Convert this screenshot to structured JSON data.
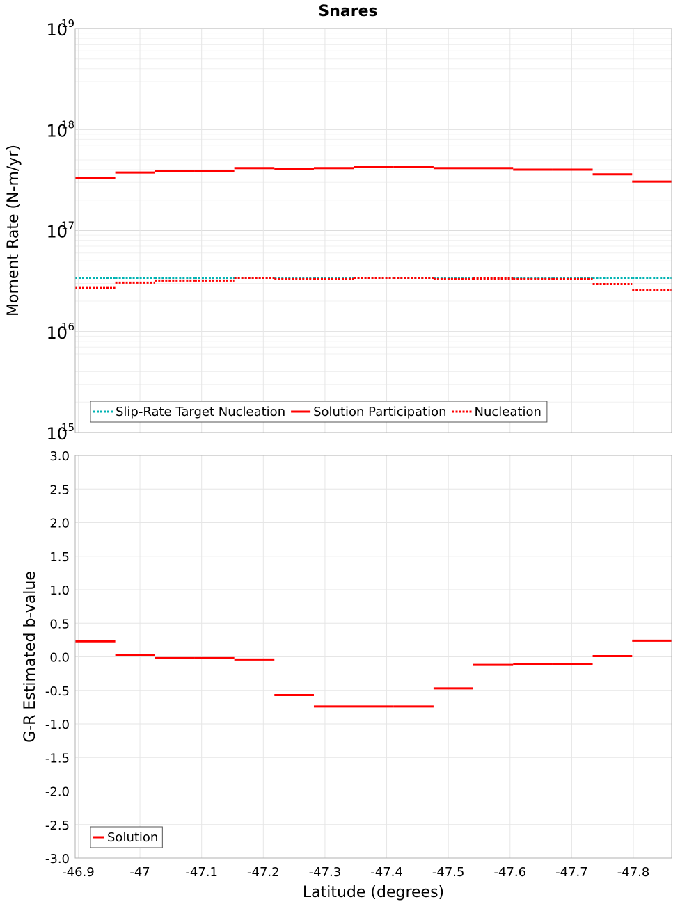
{
  "title": "Snares",
  "chart_data": [
    {
      "type": "line",
      "step": true,
      "title": "Snares",
      "xlabel": "Latitude (degrees)",
      "ylabel": "Moment Rate (N-m/yr)",
      "yscale": "log",
      "ylim": [
        1000000000000000.0,
        1e+19
      ],
      "xlim": [
        -46.895,
        -47.862
      ],
      "grid": true,
      "legend_position": "bottom-left",
      "y_tick_labels": [
        {
          "base": "10",
          "exp": "15"
        },
        {
          "base": "10",
          "exp": "16"
        },
        {
          "base": "10",
          "exp": "17"
        },
        {
          "base": "10",
          "exp": "18"
        },
        {
          "base": "10",
          "exp": "19"
        }
      ],
      "bin_edges": [
        -46.895,
        -46.96,
        -47.024,
        -47.089,
        -47.153,
        -47.218,
        -47.282,
        -47.347,
        -47.411,
        -47.476,
        -47.54,
        -47.605,
        -47.669,
        -47.734,
        -47.798,
        -47.862
      ],
      "series": [
        {
          "name": "Slip-Rate Target Nucleation",
          "color": "#00b3b3",
          "style": "dotted",
          "values": [
            3.4e+16,
            3.4e+16,
            3.4e+16,
            3.4e+16,
            3.4e+16,
            3.4e+16,
            3.4e+16,
            3.4e+16,
            3.4e+16,
            3.4e+16,
            3.4e+16,
            3.4e+16,
            3.4e+16,
            3.4e+16,
            3.4e+16
          ]
        },
        {
          "name": "Solution Participation",
          "color": "#ff0000",
          "style": "solid",
          "values": [
            3.3e+17,
            3.75e+17,
            3.9e+17,
            3.9e+17,
            4.15e+17,
            4.1e+17,
            4.15e+17,
            4.25e+17,
            4.25e+17,
            4.15e+17,
            4.15e+17,
            4e+17,
            4e+17,
            3.6e+17,
            3.05e+17
          ]
        },
        {
          "name": "Nucleation",
          "color": "#ff0000",
          "style": "dotted",
          "values": [
            2.7e+16,
            3.05e+16,
            3.2e+16,
            3.2e+16,
            3.4e+16,
            3.3e+16,
            3.3e+16,
            3.4e+16,
            3.4e+16,
            3.3e+16,
            3.35e+16,
            3.3e+16,
            3.3e+16,
            2.95e+16,
            2.6e+16
          ]
        }
      ]
    },
    {
      "type": "line",
      "step": true,
      "xlabel": "Latitude (degrees)",
      "ylabel": "G-R Estimated b-value",
      "ylim": [
        -3.0,
        3.0
      ],
      "xlim": [
        -46.895,
        -47.862
      ],
      "grid": true,
      "legend_position": "bottom-left",
      "x_ticks": [
        -46.9,
        -47.0,
        -47.1,
        -47.2,
        -47.3,
        -47.4,
        -47.5,
        -47.6,
        -47.7,
        -47.8
      ],
      "x_tick_labels": [
        "-46.9",
        "-47",
        "-47.1",
        "-47.2",
        "-47.3",
        "-47.4",
        "-47.5",
        "-47.6",
        "-47.7",
        "-47.8"
      ],
      "y_ticks": [
        3.0,
        2.5,
        2.0,
        1.5,
        1.0,
        0.5,
        0.0,
        -0.5,
        -1.0,
        -1.5,
        -2.0,
        -2.5,
        -3.0
      ],
      "y_tick_labels": [
        "3.0",
        "2.5",
        "2.0",
        "1.5",
        "1.0",
        "0.5",
        "0.0",
        "-0.5",
        "-1.0",
        "-1.5",
        "-2.0",
        "-2.5",
        "-3.0"
      ],
      "bin_edges": [
        -46.895,
        -46.96,
        -47.024,
        -47.089,
        -47.153,
        -47.218,
        -47.282,
        -47.347,
        -47.411,
        -47.476,
        -47.54,
        -47.605,
        -47.669,
        -47.734,
        -47.798,
        -47.862
      ],
      "series": [
        {
          "name": "Solution",
          "color": "#ff0000",
          "style": "solid",
          "values": [
            0.23,
            0.03,
            -0.02,
            -0.02,
            -0.04,
            -0.57,
            -0.74,
            -0.74,
            -0.74,
            -0.47,
            -0.12,
            -0.11,
            -0.11,
            0.01,
            0.24
          ]
        }
      ]
    }
  ]
}
